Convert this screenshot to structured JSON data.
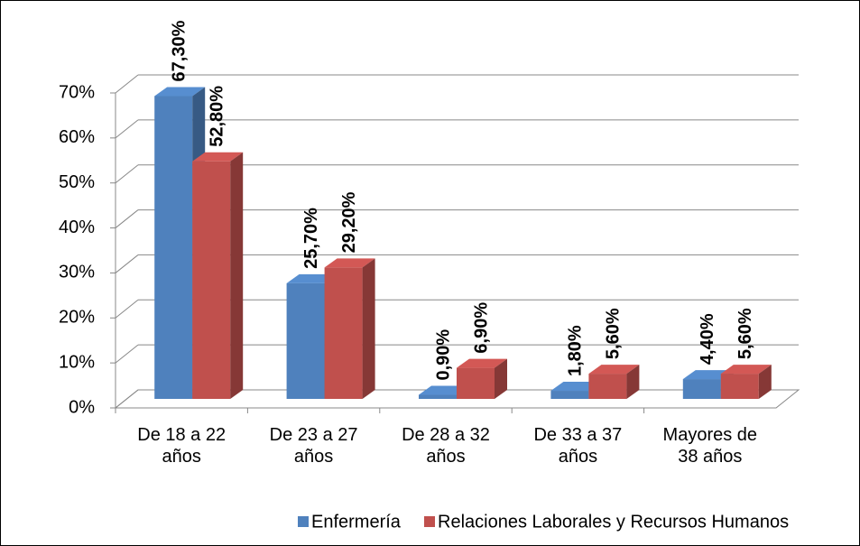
{
  "chart_data": {
    "type": "bar3d",
    "categories": [
      "De 18 a 22 años",
      "De 23 a 27 años",
      "De 28 a 32 años",
      "De 33 a 37 años",
      "Mayores de 38 años"
    ],
    "series": [
      {
        "name": "Enfermería",
        "color": "#4f81bd",
        "values": [
          67.3,
          25.7,
          0.9,
          1.8,
          4.4
        ],
        "value_labels": [
          "67,30%",
          "25,70%",
          "0,90%",
          "1,80%",
          "4,40%"
        ]
      },
      {
        "name": "Relaciones Laborales y Recursos Humanos",
        "color": "#c0504d",
        "values": [
          52.8,
          29.2,
          6.9,
          5.6,
          5.6
        ],
        "value_labels": [
          "52,80%",
          "29,20%",
          "6,90%",
          "5,60%",
          "5,60%"
        ]
      }
    ],
    "ylim": [
      0,
      70
    ],
    "yticks": [
      {
        "value": 0,
        "label": "0%"
      },
      {
        "value": 10,
        "label": "10%"
      },
      {
        "value": 20,
        "label": "20%"
      },
      {
        "value": 30,
        "label": "30%"
      },
      {
        "value": 40,
        "label": "40%"
      },
      {
        "value": 50,
        "label": "50%"
      },
      {
        "value": 60,
        "label": "60%"
      },
      {
        "value": 70,
        "label": "70%"
      }
    ],
    "grid": true,
    "legend": "bottom"
  }
}
